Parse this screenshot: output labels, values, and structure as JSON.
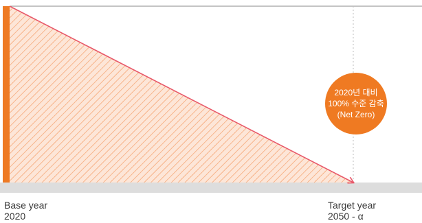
{
  "chart_data": {
    "type": "area",
    "x": [
      "2020",
      "2050 - α"
    ],
    "y_percent_of_base": [
      100,
      0
    ],
    "x_start": {
      "caption": "Base year",
      "value": "2020"
    },
    "x_end": {
      "caption": "Target year",
      "value": "2050 - α"
    },
    "annotation": {
      "lines": [
        "2020년 대비",
        "100% 수준 감축",
        "(Net Zero)"
      ]
    },
    "grid": false,
    "colors": {
      "area_hatch": "#f39a62",
      "area_fill": "#fde6d8",
      "base_bar": "#ee7a24",
      "trend_line": "#e8596a",
      "badge": "#ef7a22",
      "floor": "#dddddd",
      "frame": "#8a8a8a",
      "target_guide": "#bdbdbd"
    }
  }
}
